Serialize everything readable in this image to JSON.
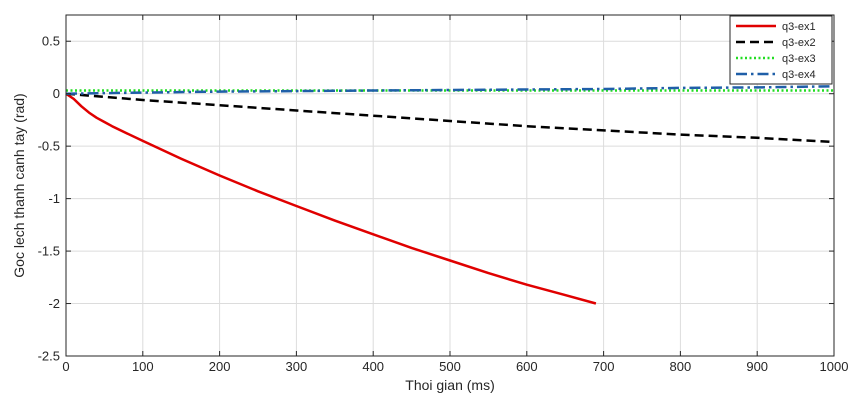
{
  "chart_data": {
    "type": "line",
    "xlabel": "Thoi gian (ms)",
    "ylabel": "Goc lech thanh canh tay (rad)",
    "xlim": [
      0,
      1000
    ],
    "ylim": [
      -2.5,
      0.75
    ],
    "xticks": [
      0,
      100,
      200,
      300,
      400,
      500,
      600,
      700,
      800,
      900,
      1000
    ],
    "yticks": [
      -2.5,
      -2,
      -1.5,
      -1,
      -0.5,
      0,
      0.5
    ],
    "xtick_labels": [
      "0",
      "100",
      "200",
      "300",
      "400",
      "500",
      "600",
      "700",
      "800",
      "900",
      "1000"
    ],
    "ytick_labels": [
      "-2.5",
      "-2",
      "-1.5",
      "-1",
      "-0.5",
      "0",
      "0.5"
    ],
    "grid": true,
    "legend_position": "top-right",
    "series": [
      {
        "name": "q3-ex1",
        "color": "#e00000",
        "style": "solid",
        "x": [
          0,
          10,
          20,
          30,
          40,
          50,
          60,
          80,
          100,
          150,
          200,
          250,
          300,
          350,
          400,
          450,
          500,
          550,
          600,
          650,
          690
        ],
        "y": [
          0,
          -0.05,
          -0.12,
          -0.18,
          -0.23,
          -0.27,
          -0.31,
          -0.38,
          -0.45,
          -0.62,
          -0.78,
          -0.93,
          -1.07,
          -1.21,
          -1.34,
          -1.47,
          -1.59,
          -1.71,
          -1.82,
          -1.92,
          -2.0
        ]
      },
      {
        "name": "q3-ex2",
        "color": "#000000",
        "style": "dashed",
        "x": [
          0,
          100,
          200,
          300,
          400,
          500,
          600,
          700,
          800,
          900,
          1000
        ],
        "y": [
          0,
          -0.06,
          -0.11,
          -0.16,
          -0.21,
          -0.26,
          -0.31,
          -0.35,
          -0.39,
          -0.42,
          -0.46
        ]
      },
      {
        "name": "q3-ex3",
        "color": "#22dd22",
        "style": "dotted",
        "x": [
          0,
          1000
        ],
        "y": [
          0.03,
          0.03
        ]
      },
      {
        "name": "q3-ex4",
        "color": "#1f5fa8",
        "style": "dashdot",
        "x": [
          0,
          100,
          200,
          300,
          400,
          500,
          600,
          700,
          800,
          900,
          1000
        ],
        "y": [
          0.0,
          0.01,
          0.02,
          0.025,
          0.03,
          0.035,
          0.04,
          0.045,
          0.055,
          0.06,
          0.07
        ]
      }
    ]
  }
}
